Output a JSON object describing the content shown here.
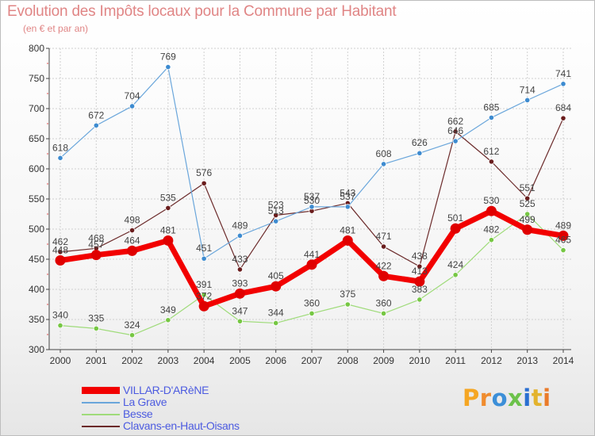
{
  "title": "Evolution des Impôts locaux pour la Commune par Habitant",
  "subtitle": "(en € et par an)",
  "brand": {
    "letters": [
      "P",
      "r",
      "o",
      "x",
      "i",
      "t",
      "i"
    ],
    "colors": [
      "#f5a623",
      "#f08c2e",
      "#3c8fd8",
      "#6cc24a",
      "#2a6fd1",
      "#e3b32d",
      "#ea7b2a"
    ]
  },
  "chart_data": {
    "type": "line",
    "title": "Evolution des Impôts locaux pour la Commune par Habitant",
    "subtitle": "(en € et par an)",
    "xlabel": "",
    "ylabel": "",
    "x": [
      "2000",
      "2001",
      "2002",
      "2003",
      "2004",
      "2005",
      "2006",
      "2007",
      "2008",
      "2009",
      "2010",
      "2011",
      "2012",
      "2013",
      "2014"
    ],
    "ylim": [
      300,
      800
    ],
    "yticks": [
      300,
      350,
      400,
      450,
      500,
      550,
      600,
      650,
      700,
      750,
      800
    ],
    "ytick_labels": [
      "300",
      "350",
      "400",
      "450",
      "500",
      "550",
      "600",
      "650",
      "700",
      "750",
      "800"
    ],
    "grid": true,
    "legend_position": "bottom-left",
    "series": [
      {
        "name": "Clavans-en-Haut-Oisans",
        "color": "#6b2a2a",
        "marker": "#6a1d1d",
        "width": 1.2,
        "marker_r": 3.2,
        "values": [
          462,
          468,
          498,
          535,
          576,
          433,
          523,
          530,
          543,
          471,
          438,
          662,
          612,
          551,
          684
        ],
        "labels": [
          "462",
          "468",
          "498",
          "535",
          "576",
          "433",
          "523",
          "530",
          "543",
          "471",
          "438",
          "662",
          "612",
          "551",
          "684"
        ]
      },
      {
        "name": "Besse",
        "color": "#9fdb7a",
        "marker": "#76c743",
        "width": 1.2,
        "marker_r": 3.2,
        "values": [
          340,
          335,
          324,
          349,
          391,
          347,
          344,
          360,
          375,
          360,
          383,
          424,
          482,
          525,
          465
        ],
        "labels": [
          "340",
          "335",
          "324",
          "349",
          "391",
          "347",
          "344",
          "360",
          "375",
          "360",
          "383",
          "424",
          "482",
          "525",
          "465"
        ]
      },
      {
        "name": "La Grave",
        "color": "#6aa6db",
        "marker": "#3d8bd0",
        "width": 1.2,
        "marker_r": 3.2,
        "values": [
          618,
          672,
          704,
          769,
          451,
          489,
          513,
          537,
          537,
          608,
          626,
          646,
          685,
          714,
          741
        ],
        "labels": [
          "618",
          "672",
          "704",
          "769",
          "451",
          "489",
          "513",
          "537",
          "537",
          "608",
          "626",
          "646",
          "685",
          "714",
          "741"
        ]
      },
      {
        "name": "VILLAR-D'ARèNE",
        "color": "#f20000",
        "marker": "#e00000",
        "width": 7,
        "marker_r": 6.5,
        "values": [
          448,
          457,
          464,
          481,
          372,
          393,
          405,
          441,
          481,
          422,
          413,
          501,
          530,
          499,
          489
        ],
        "labels": [
          "448",
          "457",
          "464",
          "481",
          "372",
          "393",
          "405",
          "441",
          "481",
          "422",
          "413",
          "501",
          "530",
          "499",
          "489"
        ]
      }
    ],
    "legend": [
      "VILLAR-D'ARèNE",
      "La Grave",
      "Besse",
      "Clavans-en-Haut-Oisans"
    ]
  }
}
